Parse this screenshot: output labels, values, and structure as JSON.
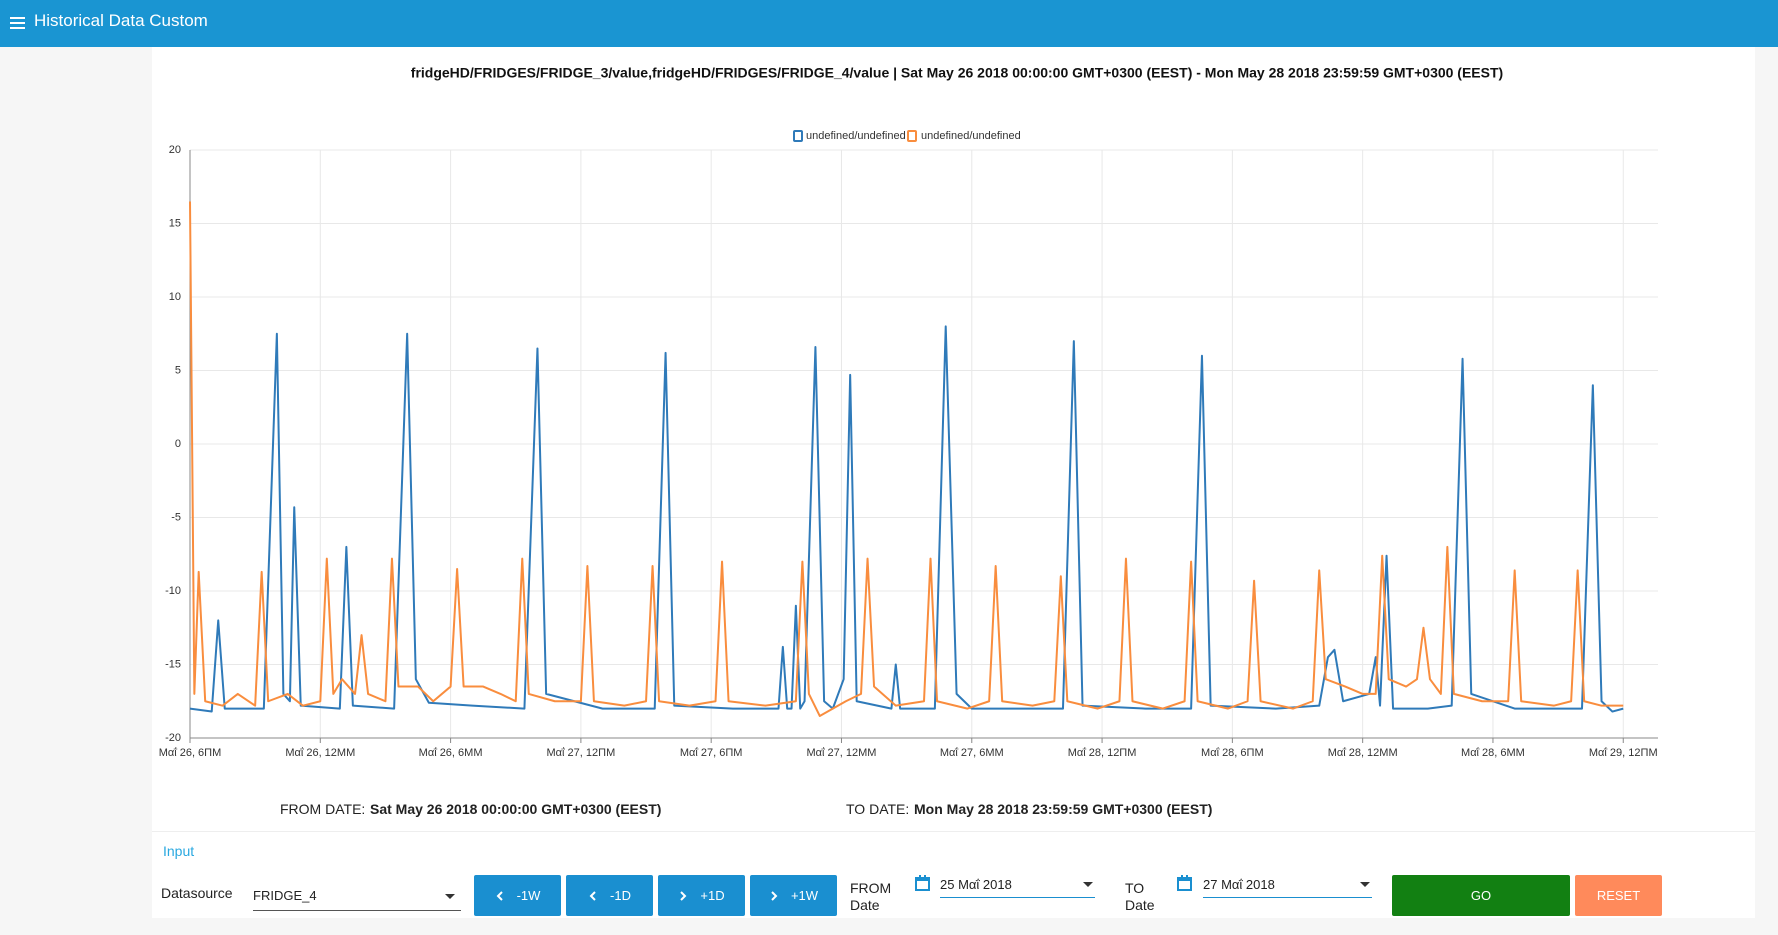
{
  "header": {
    "title": "Historical Data Custom"
  },
  "chart_data": {
    "type": "line",
    "title": "fridgeHD/FRIDGES/FRIDGE_3/value,fridgeHD/FRIDGES/FRIDGE_4/value | Sat May 26 2018 00:00:00 GMT+0300 (EEST) - Mon May 28 2018 23:59:59 GMT+0300 (EEST)",
    "xlim": [
      6,
      73.6
    ],
    "xticks": [
      {
        "value": 6,
        "label": "Μαΐ 26, 6ΠΜ"
      },
      {
        "value": 12,
        "label": "Μαΐ 26, 12ΜΜ"
      },
      {
        "value": 18,
        "label": "Μαΐ 26, 6ΜΜ"
      },
      {
        "value": 24,
        "label": "Μαΐ 27, 12ΠΜ"
      },
      {
        "value": 30,
        "label": "Μαΐ 27, 6ΠΜ"
      },
      {
        "value": 36,
        "label": "Μαΐ 27, 12ΜΜ"
      },
      {
        "value": 42,
        "label": "Μαΐ 27, 6ΜΜ"
      },
      {
        "value": 48,
        "label": "Μαΐ 28, 12ΠΜ"
      },
      {
        "value": 54,
        "label": "Μαΐ 28, 6ΠΜ"
      },
      {
        "value": 60,
        "label": "Μαΐ 28, 12ΜΜ"
      },
      {
        "value": 66,
        "label": "Μαΐ 28, 6ΜΜ"
      },
      {
        "value": 72,
        "label": "Μαΐ 29, 12ΠΜ"
      }
    ],
    "ylim": [
      -20,
      20
    ],
    "yticks": [
      -20,
      -15,
      -10,
      -5,
      0,
      5,
      10,
      15,
      20
    ],
    "grid": true,
    "legend": "top",
    "series": [
      {
        "name": "undefined/undefined",
        "color": "#2f7ab9",
        "x": [
          6,
          7.0,
          7.3,
          7.6,
          9.4,
          10.0,
          10.3,
          10.6,
          10.8,
          11.1,
          12.9,
          13.2,
          13.5,
          15.4,
          16.0,
          16.4,
          17,
          19,
          21.4,
          22.0,
          22.4,
          25,
          27.4,
          27.9,
          28.3,
          31,
          33.1,
          33.3,
          33.5,
          33.7,
          33.9,
          34.1,
          34.3,
          34.8,
          35.2,
          35.6,
          36.1,
          36.4,
          36.7,
          38.3,
          38.5,
          38.7,
          40.3,
          40.8,
          41.3,
          42,
          44,
          46.2,
          46.7,
          47.1,
          50,
          52.1,
          52.6,
          53,
          56,
          58,
          58.4,
          58.7,
          59.1,
          60.3,
          60.6,
          60.8,
          61.1,
          61.4,
          63,
          64.1,
          64.6,
          65.0,
          67,
          70.1,
          70.6,
          71,
          71.5,
          72
        ],
        "values": [
          -18,
          -18.2,
          -12,
          -18,
          -18,
          7.5,
          -17,
          -17.5,
          -4.3,
          -17.8,
          -18,
          -7,
          -17.8,
          -18,
          7.5,
          -16,
          -17.6,
          -17.8,
          -18,
          6.5,
          -17,
          -18,
          -18,
          6.2,
          -17.8,
          -18,
          -18,
          -13.8,
          -18,
          -18,
          -11,
          -18,
          -17.5,
          6.6,
          -17.5,
          -18,
          -16,
          4.7,
          -17.5,
          -18,
          -15,
          -18,
          -18,
          8,
          -17,
          -18,
          -18,
          -18,
          7,
          -17.8,
          -18,
          -18,
          6,
          -17.8,
          -18,
          -17.8,
          -14.5,
          -14,
          -17.5,
          -17,
          -14.5,
          -17.8,
          -7.6,
          -18,
          -18,
          -17.8,
          5.8,
          -17,
          -18,
          -18,
          4,
          -17.5,
          -18.2,
          -18
        ]
      },
      {
        "name": "undefined/undefined",
        "color": "#f98d3e",
        "x": [
          6.0,
          6.2,
          6.4,
          6.7,
          7.5,
          8.2,
          9.0,
          9.3,
          9.6,
          10.5,
          11.2,
          12.0,
          12.3,
          12.6,
          13.0,
          13.6,
          13.9,
          14.2,
          15.0,
          15.3,
          15.6,
          16.5,
          17.2,
          18.0,
          18.3,
          18.6,
          19.5,
          20.3,
          21.0,
          21.3,
          21.6,
          22.8,
          24.0,
          24.3,
          24.6,
          26,
          27.0,
          27.3,
          27.6,
          29,
          30.2,
          30.5,
          30.8,
          32.5,
          33.9,
          34.2,
          34.5,
          35.0,
          36.2,
          36.9,
          37.2,
          37.5,
          38.5,
          39.8,
          40.1,
          40.4,
          41.8,
          42.8,
          43.1,
          43.4,
          44.8,
          45.8,
          46.1,
          46.4,
          47.8,
          48.8,
          49.1,
          49.4,
          50.8,
          51.8,
          52.1,
          52.4,
          53.8,
          54.7,
          55.0,
          55.3,
          56.8,
          57.7,
          58.0,
          58.3,
          59.2,
          60.0,
          60.6,
          60.9,
          61.2,
          62.0,
          62.5,
          62.8,
          63.1,
          63.6,
          63.9,
          64.2,
          65.5,
          66.7,
          67.0,
          67.3,
          68.8,
          69.6,
          69.9,
          70.2,
          71.0,
          72.0
        ],
        "values": [
          16.5,
          -17,
          -8.7,
          -17.5,
          -17.8,
          -17,
          -17.8,
          -8.7,
          -17.5,
          -17,
          -17.8,
          -17.5,
          -7.8,
          -17,
          -16,
          -17,
          -13,
          -17,
          -17.5,
          -7.8,
          -16.5,
          -16.5,
          -17.5,
          -16.5,
          -8.5,
          -16.5,
          -16.5,
          -17,
          -17.5,
          -7.8,
          -17,
          -17.5,
          -17.5,
          -8.3,
          -17.5,
          -17.8,
          -17.5,
          -8.3,
          -17.5,
          -17.8,
          -17.5,
          -8,
          -17.5,
          -17.8,
          -17.5,
          -8,
          -17,
          -18.5,
          -17.5,
          -17,
          -7.8,
          -16.5,
          -17.8,
          -17.5,
          -7.8,
          -17.5,
          -18,
          -17.5,
          -8.3,
          -17.5,
          -17.8,
          -17.5,
          -9,
          -17.5,
          -18,
          -17.5,
          -7.8,
          -17.5,
          -18,
          -17.5,
          -8,
          -17.5,
          -18,
          -17.5,
          -9.3,
          -17.5,
          -18,
          -17.5,
          -8.6,
          -16,
          -16.5,
          -17,
          -17,
          -7.6,
          -16,
          -16.5,
          -16,
          -12.5,
          -16,
          -17,
          -7,
          -17,
          -17.5,
          -17.5,
          -8.6,
          -17.5,
          -17.8,
          -17.5,
          -8.6,
          -17.5,
          -17.8,
          -17.8
        ]
      }
    ]
  },
  "dates": {
    "from_label": "FROM DATE:",
    "from_value": "Sat May 26 2018 00:00:00 GMT+0300 (EEST)",
    "to_label": "TO DATE:",
    "to_value": "Mon May 28 2018 23:59:59 GMT+0300 (EEST)"
  },
  "input": {
    "title": "Input",
    "datasource_label": "Datasource",
    "datasource_value": "FRIDGE_4",
    "buttons": [
      "-1W",
      "-1D",
      "+1D",
      "+1W"
    ],
    "from_label": "FROM Date",
    "from_value": "25 Μαΐ 2018",
    "to_label": "TO Date",
    "to_value": "27 Μαΐ 2018",
    "go": "GO",
    "reset": "RESET"
  }
}
